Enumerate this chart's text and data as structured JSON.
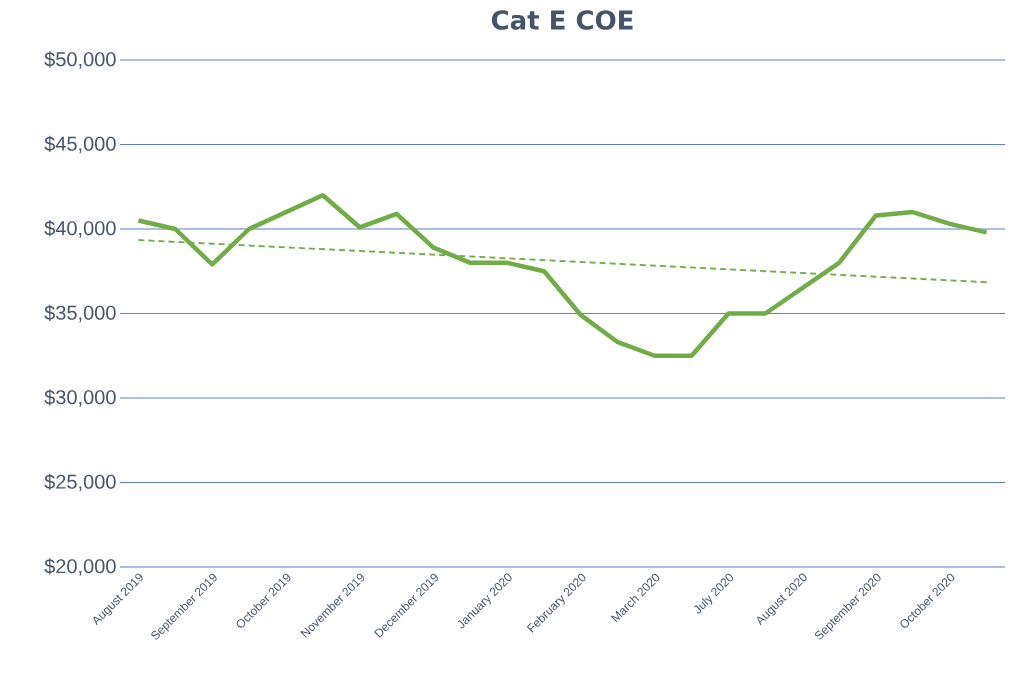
{
  "chart_data": {
    "type": "line",
    "title": "Cat E COE",
    "categories": [
      "August 2019",
      null,
      "September 2019",
      null,
      "October 2019",
      null,
      "November 2019",
      null,
      "December 2019",
      null,
      "January 2020",
      null,
      "February 2020",
      null,
      "March 2020",
      null,
      "July 2020",
      null,
      "August 2020",
      null,
      "September 2020",
      null,
      "October 2020",
      null
    ],
    "series": [
      {
        "color": "#70ad47",
        "values": [
          40500,
          40000,
          37900,
          40000,
          41000,
          42000,
          40100,
          40900,
          38900,
          38000,
          38000,
          37500,
          34900,
          33300,
          32500,
          32500,
          35000,
          35000,
          36500,
          38000,
          40800,
          41000,
          40300,
          39800
        ]
      },
      {
        "type": "line",
        "color": "#70ad47",
        "line_style": "dashed",
        "values": [
          39350,
          null,
          null,
          null,
          null,
          null,
          null,
          null,
          null,
          null,
          null,
          null,
          null,
          null,
          null,
          null,
          null,
          null,
          null,
          null,
          null,
          null,
          null,
          36850
        ]
      }
    ],
    "ylim": [
      20000,
      50000
    ],
    "yticks": [
      {
        "value": 20000,
        "label": "$20,000"
      },
      {
        "value": 25000,
        "label": "$25,000"
      },
      {
        "value": 30000,
        "label": "$30,000"
      },
      {
        "value": 35000,
        "label": "$35,000"
      },
      {
        "value": 40000,
        "label": "$40,000"
      },
      {
        "value": 45000,
        "label": "$45,000"
      },
      {
        "value": 50000,
        "label": "$50,000"
      }
    ],
    "grid": "y",
    "marker": "none"
  }
}
